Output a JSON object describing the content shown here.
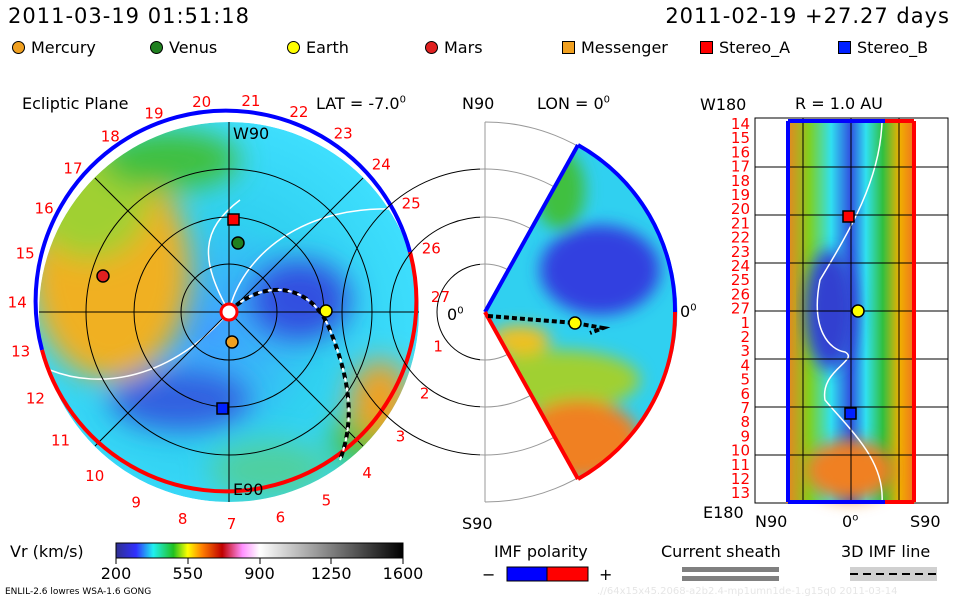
{
  "header": {
    "timestamp": "2011-03-19 01:51:18",
    "reference": "2011-02-19 +27.27 days"
  },
  "legend": [
    {
      "label": "Mercury",
      "shape": "circle",
      "color": "#f0a020"
    },
    {
      "label": "Venus",
      "shape": "circle",
      "color": "#208020"
    },
    {
      "label": "Earth",
      "shape": "circle",
      "color": "#ffff00"
    },
    {
      "label": "Mars",
      "shape": "circle",
      "color": "#e02020"
    },
    {
      "label": "Messenger",
      "shape": "square",
      "color": "#f0a020"
    },
    {
      "label": "Stereo_A",
      "shape": "square",
      "color": "#ff0000"
    },
    {
      "label": "Stereo_B",
      "shape": "square",
      "color": "#0020ff"
    }
  ],
  "ecliptic": {
    "title": "Ecliptic Plane",
    "top_label": "W90",
    "bottom_label": "E90",
    "right_label": "0",
    "right_sup": "0",
    "lat_label": "LAT = -7.0",
    "lat_sup": "0",
    "days": [
      "1",
      "2",
      "3",
      "4",
      "5",
      "6",
      "7",
      "8",
      "9",
      "10",
      "11",
      "12",
      "13",
      "14",
      "15",
      "16",
      "17",
      "18",
      "19",
      "20",
      "21",
      "22",
      "23",
      "24",
      "25",
      "26",
      "27"
    ]
  },
  "meridional": {
    "top_label": "N90",
    "bottom_label": "S90",
    "lon_label": "LON = 0",
    "lon_sup": "0",
    "right_label": "0",
    "right_sup": "0"
  },
  "radial": {
    "title": "R = 1.0 AU",
    "top_label": "W180",
    "bottom_label": "E180",
    "x_left": "N90",
    "x_mid": "0",
    "x_mid_sup": "o",
    "x_right": "S90",
    "days": [
      "14",
      "15",
      "16",
      "17",
      "18",
      "19",
      "20",
      "21",
      "22",
      "23",
      "24",
      "25",
      "26",
      "27",
      "1",
      "2",
      "3",
      "4",
      "5",
      "6",
      "7",
      "8",
      "9",
      "10",
      "11",
      "12",
      "13"
    ]
  },
  "colorbar": {
    "label": "Vr (km/s)",
    "ticks": [
      "200",
      "550",
      "900",
      "1250",
      "1600"
    ]
  },
  "imf": {
    "label": "IMF polarity",
    "minus": "−",
    "plus": "+",
    "neg_color": "#0000ff",
    "pos_color": "#ff0000"
  },
  "sheath": {
    "label": "Current sheath"
  },
  "imf_line": {
    "label": "3D IMF line"
  },
  "footer": {
    "model": "ENLIL-2.6 lowres WSA-1.6 GONG",
    "run": ".//64x15x45.2068-a2b2.4-mp1umn1de-1.g15q0   2011-03-14"
  }
}
